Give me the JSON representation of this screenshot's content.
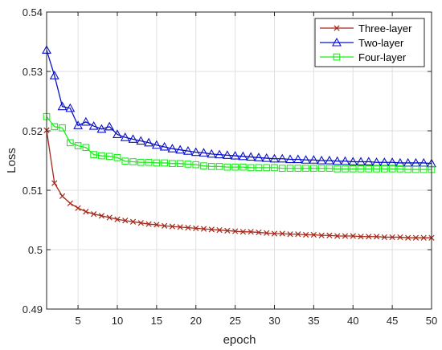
{
  "chart_data": {
    "type": "line",
    "title": "",
    "xlabel": "epoch",
    "ylabel": "Loss",
    "xlim": [
      1,
      50
    ],
    "ylim": [
      0.49,
      0.54
    ],
    "xticks": [
      5,
      10,
      15,
      20,
      25,
      30,
      35,
      40,
      45,
      50
    ],
    "yticks": [
      0.49,
      0.5,
      0.51,
      0.52,
      0.53,
      0.54
    ],
    "xtick_labels": [
      "5",
      "10",
      "15",
      "20",
      "25",
      "30",
      "35",
      "40",
      "45",
      "50"
    ],
    "ytick_labels": [
      "0.49",
      "0.5",
      "0.51",
      "0.52",
      "0.53",
      "0.54"
    ],
    "grid": true,
    "legend_position": "top-right",
    "x": [
      1,
      2,
      3,
      4,
      5,
      6,
      7,
      8,
      9,
      10,
      11,
      12,
      13,
      14,
      15,
      16,
      17,
      18,
      19,
      20,
      21,
      22,
      23,
      24,
      25,
      26,
      27,
      28,
      29,
      30,
      31,
      32,
      33,
      34,
      35,
      36,
      37,
      38,
      39,
      40,
      41,
      42,
      43,
      44,
      45,
      46,
      47,
      48,
      49,
      50
    ],
    "series": [
      {
        "name": "Three-layer",
        "color": "#a52a1a",
        "marker": "x",
        "values": [
          0.5201,
          0.5112,
          0.509,
          0.5078,
          0.507,
          0.5064,
          0.506,
          0.5057,
          0.5054,
          0.5051,
          0.5049,
          0.5047,
          0.5045,
          0.5043,
          0.5042,
          0.504,
          0.5039,
          0.5038,
          0.5037,
          0.5036,
          0.5035,
          0.5034,
          0.5033,
          0.5032,
          0.5031,
          0.503,
          0.503,
          0.5029,
          0.5028,
          0.5027,
          0.5027,
          0.5026,
          0.5026,
          0.5025,
          0.5025,
          0.5024,
          0.5024,
          0.5023,
          0.5023,
          0.5023,
          0.5022,
          0.5022,
          0.5022,
          0.5021,
          0.5021,
          0.5021,
          0.502,
          0.502,
          0.502,
          0.502
        ]
      },
      {
        "name": "Two-layer",
        "color": "#0a10c8",
        "marker": "triangle",
        "values": [
          0.5336,
          0.5293,
          0.5241,
          0.5238,
          0.5209,
          0.5215,
          0.5208,
          0.5203,
          0.5207,
          0.5194,
          0.5189,
          0.5186,
          0.5183,
          0.518,
          0.5176,
          0.5173,
          0.517,
          0.5168,
          0.5166,
          0.5164,
          0.5163,
          0.5161,
          0.516,
          0.5159,
          0.5158,
          0.5157,
          0.5156,
          0.5155,
          0.5154,
          0.5153,
          0.5153,
          0.5152,
          0.5152,
          0.5151,
          0.5151,
          0.515,
          0.515,
          0.5149,
          0.5149,
          0.5148,
          0.5148,
          0.5148,
          0.5147,
          0.5147,
          0.5147,
          0.5146,
          0.5146,
          0.5146,
          0.5146,
          0.5145
        ]
      },
      {
        "name": "Four-layer",
        "color": "#1aee1a",
        "marker": "square",
        "values": [
          0.5224,
          0.5207,
          0.5205,
          0.518,
          0.5175,
          0.5172,
          0.516,
          0.5158,
          0.5157,
          0.5155,
          0.5149,
          0.5148,
          0.5147,
          0.5147,
          0.5146,
          0.5146,
          0.5145,
          0.5145,
          0.5144,
          0.5143,
          0.5141,
          0.514,
          0.514,
          0.5139,
          0.5139,
          0.5139,
          0.5138,
          0.5138,
          0.5138,
          0.5138,
          0.5137,
          0.5137,
          0.5137,
          0.5137,
          0.5137,
          0.5137,
          0.5137,
          0.5136,
          0.5136,
          0.5136,
          0.5136,
          0.5136,
          0.5136,
          0.5136,
          0.5136,
          0.5136,
          0.5135,
          0.5135,
          0.5135,
          0.5135
        ]
      }
    ]
  }
}
